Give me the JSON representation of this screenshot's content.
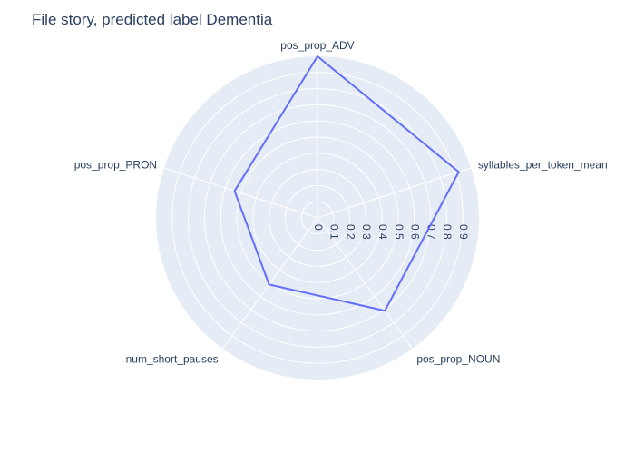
{
  "chart_data": {
    "type": "radar",
    "title": "File story, predicted label Dementia",
    "axes": [
      "pos_prop_ADV",
      "syllables_per_token_mean",
      "pos_prop_NOUN",
      "num_short_pauses",
      "pos_prop_PRON"
    ],
    "values": [
      1.0,
      0.92,
      0.71,
      0.51,
      0.54
    ],
    "radial_range": [
      0,
      1
    ],
    "radial_ticks": [
      "0",
      "0.1",
      "0.2",
      "0.3",
      "0.4",
      "0.5",
      "0.6",
      "0.7",
      "0.8",
      "0.9"
    ],
    "grid": true,
    "colors": {
      "background": "#e5ecf6",
      "grid": "#ffffff",
      "line": "#636efa",
      "text": "#2a3f5f"
    }
  }
}
